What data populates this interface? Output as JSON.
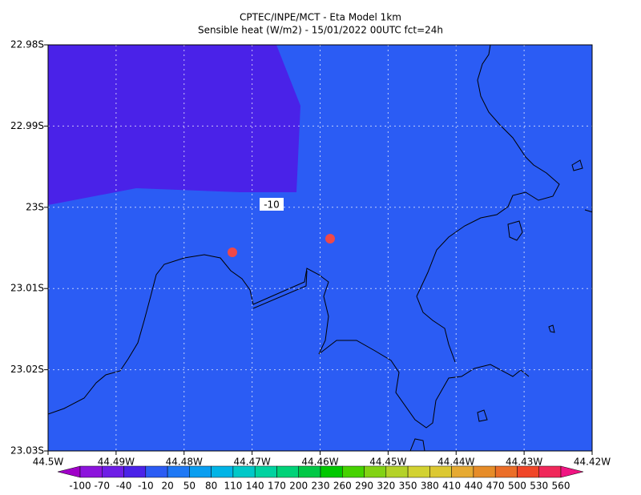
{
  "chart_data": {
    "type": "map",
    "title": "CPTEC/INPE/MCT -  Eta Model 1km",
    "subtitle": "Sensible heat (W/m2) - 15/01/2022 00UTC fct=24h",
    "contour_label": "-10",
    "xlim": [
      -44.5,
      -44.42
    ],
    "ylim": [
      -23.03,
      -22.98
    ],
    "grid": true,
    "xticks": [
      {
        "value": -44.5,
        "label": "44.5W"
      },
      {
        "value": -44.49,
        "label": "44.49W"
      },
      {
        "value": -44.48,
        "label": "44.48W"
      },
      {
        "value": -44.47,
        "label": "44.47W"
      },
      {
        "value": -44.46,
        "label": "44.46W"
      },
      {
        "value": -44.45,
        "label": "44.45W"
      },
      {
        "value": -44.44,
        "label": "44.44W"
      },
      {
        "value": -44.43,
        "label": "44.43W"
      },
      {
        "value": -44.42,
        "label": "44.42W"
      }
    ],
    "yticks": [
      {
        "value": -22.98,
        "label": "22.98S"
      },
      {
        "value": -22.99,
        "label": "22.99S"
      },
      {
        "value": -23.0,
        "label": "23S"
      },
      {
        "value": -23.01,
        "label": "23.01S"
      },
      {
        "value": -23.02,
        "label": "23.02S"
      },
      {
        "value": -23.03,
        "label": "23.03S"
      }
    ],
    "colorbar": {
      "levels": [
        -100,
        -70,
        -40,
        -10,
        20,
        50,
        80,
        110,
        140,
        170,
        200,
        230,
        260,
        290,
        320,
        350,
        380,
        410,
        440,
        470,
        500,
        530,
        560
      ],
      "colors": [
        "#a000c8",
        "#8c14dc",
        "#6e1ee6",
        "#4a22e8",
        "#2b5cf4",
        "#1e78f5",
        "#0a9ef0",
        "#00b4e6",
        "#00c8c8",
        "#00d2a0",
        "#00d278",
        "#00c846",
        "#00c800",
        "#46d200",
        "#82d214",
        "#b4d228",
        "#d2d232",
        "#dcc832",
        "#e6aa32",
        "#e68c28",
        "#eb6e28",
        "#f04628",
        "#f0285a",
        "#f01482"
      ]
    }
  }
}
